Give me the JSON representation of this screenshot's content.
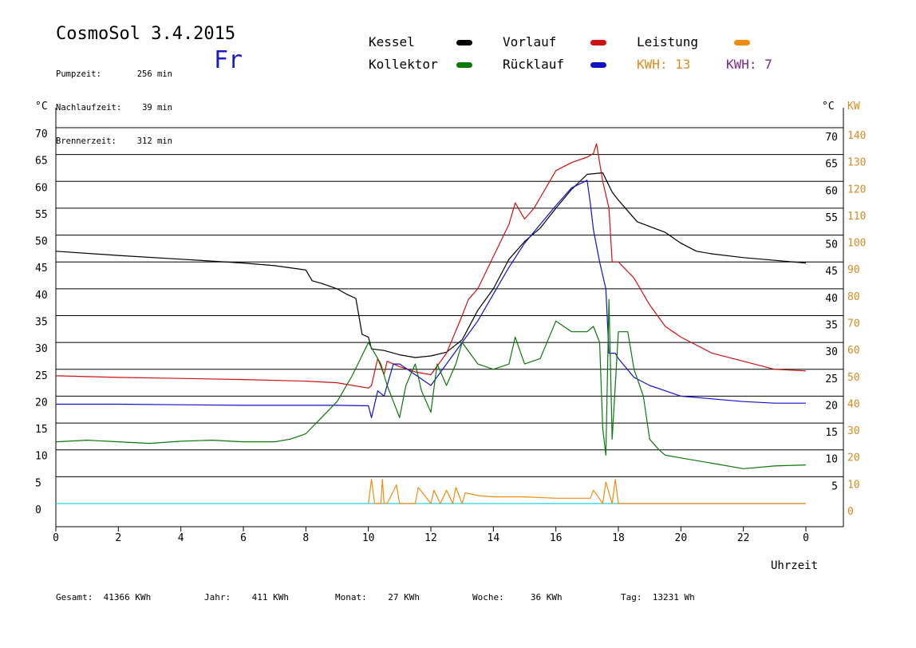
{
  "header": {
    "title": "CosmoSol 3.4.2015",
    "day": "Fr",
    "info": [
      {
        "label": "Pumpzeit:",
        "value": "256 min"
      },
      {
        "label": "Nachlaufzeit:",
        "value": "39 min"
      },
      {
        "label": "Brennerzeit:",
        "value": "312 min"
      }
    ]
  },
  "legend": {
    "kessel": "Kessel",
    "kollektor": "Kollektor",
    "vorlauf": "Vorlauf",
    "ruecklauf": "Rücklauf",
    "leistung": "Leistung",
    "kwh1": "KWH: 13",
    "kwh2": "KWH: 7"
  },
  "axes": {
    "left_unit": "°C",
    "right_unit_c": "°C",
    "right_unit_kw": "KW",
    "xlabel": "Uhrzeit"
  },
  "footer": [
    {
      "label": "Gesamt:",
      "value": "41366 KWh"
    },
    {
      "label": "Jahr:",
      "value": "411 KWh"
    },
    {
      "label": "Monat:",
      "value": "27 KWh"
    },
    {
      "label": "Woche:",
      "value": "36 KWh"
    },
    {
      "label": "Tag:",
      "value": "13231 Wh"
    }
  ],
  "colors": {
    "kessel": "#000000",
    "kollektor": "#0a780a",
    "vorlauf": "#d01010",
    "ruecklauf": "#1010c8",
    "leistung": "#f08c10",
    "kwh2": "#7a2a8a",
    "pump": "#20d0d8",
    "kwaxis": "#d88a20"
  },
  "chart_data": {
    "type": "line",
    "xlim": [
      0,
      24
    ],
    "ylim": [
      0,
      70
    ],
    "y2lim": [
      0,
      140
    ],
    "x_ticks": [
      "0",
      "2",
      "4",
      "6",
      "8",
      "10",
      "12",
      "14",
      "16",
      "18",
      "20",
      "22",
      "0"
    ],
    "y_ticks_left": [
      0,
      5,
      10,
      15,
      20,
      25,
      30,
      35,
      40,
      45,
      50,
      55,
      60,
      65,
      70
    ],
    "y_ticks_right_c": [
      5,
      10,
      15,
      20,
      25,
      30,
      35,
      40,
      45,
      50,
      55,
      60,
      65,
      70
    ],
    "y_ticks_right_kw": [
      0,
      10,
      20,
      30,
      40,
      50,
      60,
      70,
      80,
      90,
      100,
      110,
      120,
      130,
      140
    ],
    "grid": true,
    "series": [
      {
        "name": "Kessel",
        "key": "kessel",
        "x": [
          0,
          2,
          4,
          6,
          7,
          8,
          8.2,
          8.5,
          9,
          9.3,
          9.6,
          9.8,
          10,
          10.1,
          10.5,
          11,
          11.5,
          12,
          12.5,
          13,
          13.5,
          14,
          14.5,
          15,
          15.5,
          16,
          16.5,
          17,
          17.5,
          17.8,
          18,
          18.3,
          18.6,
          19,
          19.5,
          20,
          20.5,
          21,
          22,
          23,
          24
        ],
        "y": [
          47,
          46.2,
          45.5,
          44.8,
          44.3,
          43.5,
          41.5,
          41,
          40,
          39,
          38.2,
          31.5,
          31,
          28.8,
          28.5,
          27.7,
          27.2,
          27.5,
          28.2,
          30.5,
          36,
          40,
          45.5,
          48.8,
          51.3,
          55,
          58.5,
          61.3,
          61.6,
          58,
          56.5,
          54.5,
          52.5,
          51.6,
          50.5,
          48.5,
          47,
          46.5,
          45.8,
          45.3,
          44.8
        ]
      },
      {
        "name": "Vorlauf",
        "key": "vorlauf",
        "x": [
          0,
          2,
          4,
          6,
          8,
          9,
          10,
          10.1,
          10.3,
          10.5,
          10.6,
          11,
          11.5,
          12,
          12.5,
          13,
          13.2,
          13.5,
          14,
          14.5,
          14.7,
          15,
          15.3,
          15.5,
          16,
          16.5,
          17,
          17.2,
          17.3,
          17.5,
          17.7,
          17.8,
          18,
          18.5,
          19,
          19.5,
          20,
          21,
          22,
          23,
          24
        ],
        "y": [
          23.8,
          23.5,
          23.3,
          23.1,
          22.8,
          22.5,
          21.5,
          22,
          27,
          24,
          26.5,
          25.5,
          24.5,
          24,
          28,
          35,
          38,
          40,
          46,
          52,
          56,
          53,
          55,
          57,
          62,
          63.5,
          64.5,
          65.2,
          67,
          60,
          55,
          45,
          45,
          42,
          37,
          33,
          31,
          28,
          26.5,
          25,
          24.7
        ]
      },
      {
        "name": "Rücklauf",
        "key": "ruecklauf",
        "x": [
          0,
          2,
          4,
          6,
          8,
          9,
          10,
          10.1,
          10.3,
          10.5,
          10.8,
          11,
          11.5,
          12,
          12.5,
          13,
          13.5,
          14,
          14.5,
          15,
          15.5,
          16,
          16.5,
          17,
          17.1,
          17.2,
          17.4,
          17.6,
          17.7,
          17.9,
          18,
          18.5,
          19,
          19.5,
          20,
          21,
          22,
          23,
          24
        ],
        "y": [
          18.5,
          18.5,
          18.4,
          18.3,
          18.3,
          18.3,
          18.2,
          16,
          21,
          20,
          26,
          26,
          24,
          22,
          26,
          30,
          34,
          39,
          44,
          48.5,
          52,
          55.5,
          58.8,
          60.2,
          56,
          51,
          45,
          40,
          28,
          28,
          27,
          23.5,
          22,
          21,
          20,
          19.5,
          19,
          18.7,
          18.7
        ]
      },
      {
        "name": "Kollektor",
        "key": "kollektor",
        "x": [
          0,
          1,
          2,
          3,
          4,
          5,
          6,
          7,
          7.5,
          8,
          8.5,
          9,
          9.5,
          10,
          10.2,
          10.4,
          10.6,
          10.8,
          11,
          11.2,
          11.5,
          11.7,
          12,
          12.2,
          12.5,
          12.8,
          13,
          13.5,
          14,
          14.5,
          14.7,
          15,
          15.5,
          16,
          16.5,
          17,
          17.2,
          17.4,
          17.5,
          17.6,
          17.7,
          17.8,
          18,
          18.3,
          18.5,
          18.8,
          19,
          19.3,
          19.5,
          20,
          21,
          22,
          23,
          24
        ],
        "y": [
          11.5,
          11.8,
          11.5,
          11.2,
          11.6,
          11.8,
          11.5,
          11.5,
          12,
          13,
          16,
          19,
          24,
          30,
          28,
          26,
          22,
          19,
          16,
          22,
          26,
          21,
          17,
          26,
          22,
          26,
          30,
          26,
          25,
          26,
          31,
          26,
          27,
          34,
          32,
          32,
          33,
          30,
          14,
          9,
          38,
          12,
          32,
          32,
          25,
          20,
          12,
          10,
          9,
          8.5,
          7.5,
          6.5,
          7,
          7.2
        ]
      },
      {
        "name": "Leistung",
        "key": "leistung",
        "axis": "right_kw",
        "x": [
          10,
          10.1,
          10.2,
          10.4,
          10.45,
          10.5,
          10.6,
          10.9,
          11,
          11.5,
          11.6,
          12,
          12.1,
          12.3,
          12.5,
          12.7,
          12.8,
          13,
          13.1,
          13.5,
          14,
          15,
          16,
          16.5,
          17,
          17.1,
          17.2,
          17.5,
          17.6,
          17.8,
          17.9,
          18,
          24
        ],
        "y": [
          0,
          9,
          0,
          0,
          9,
          0,
          0,
          7,
          0,
          0,
          6,
          0,
          5,
          0,
          5,
          0,
          6,
          0,
          4,
          3,
          2.5,
          2.5,
          2,
          2,
          2,
          2,
          5,
          0,
          8,
          0,
          9,
          0,
          0
        ]
      }
    ]
  }
}
